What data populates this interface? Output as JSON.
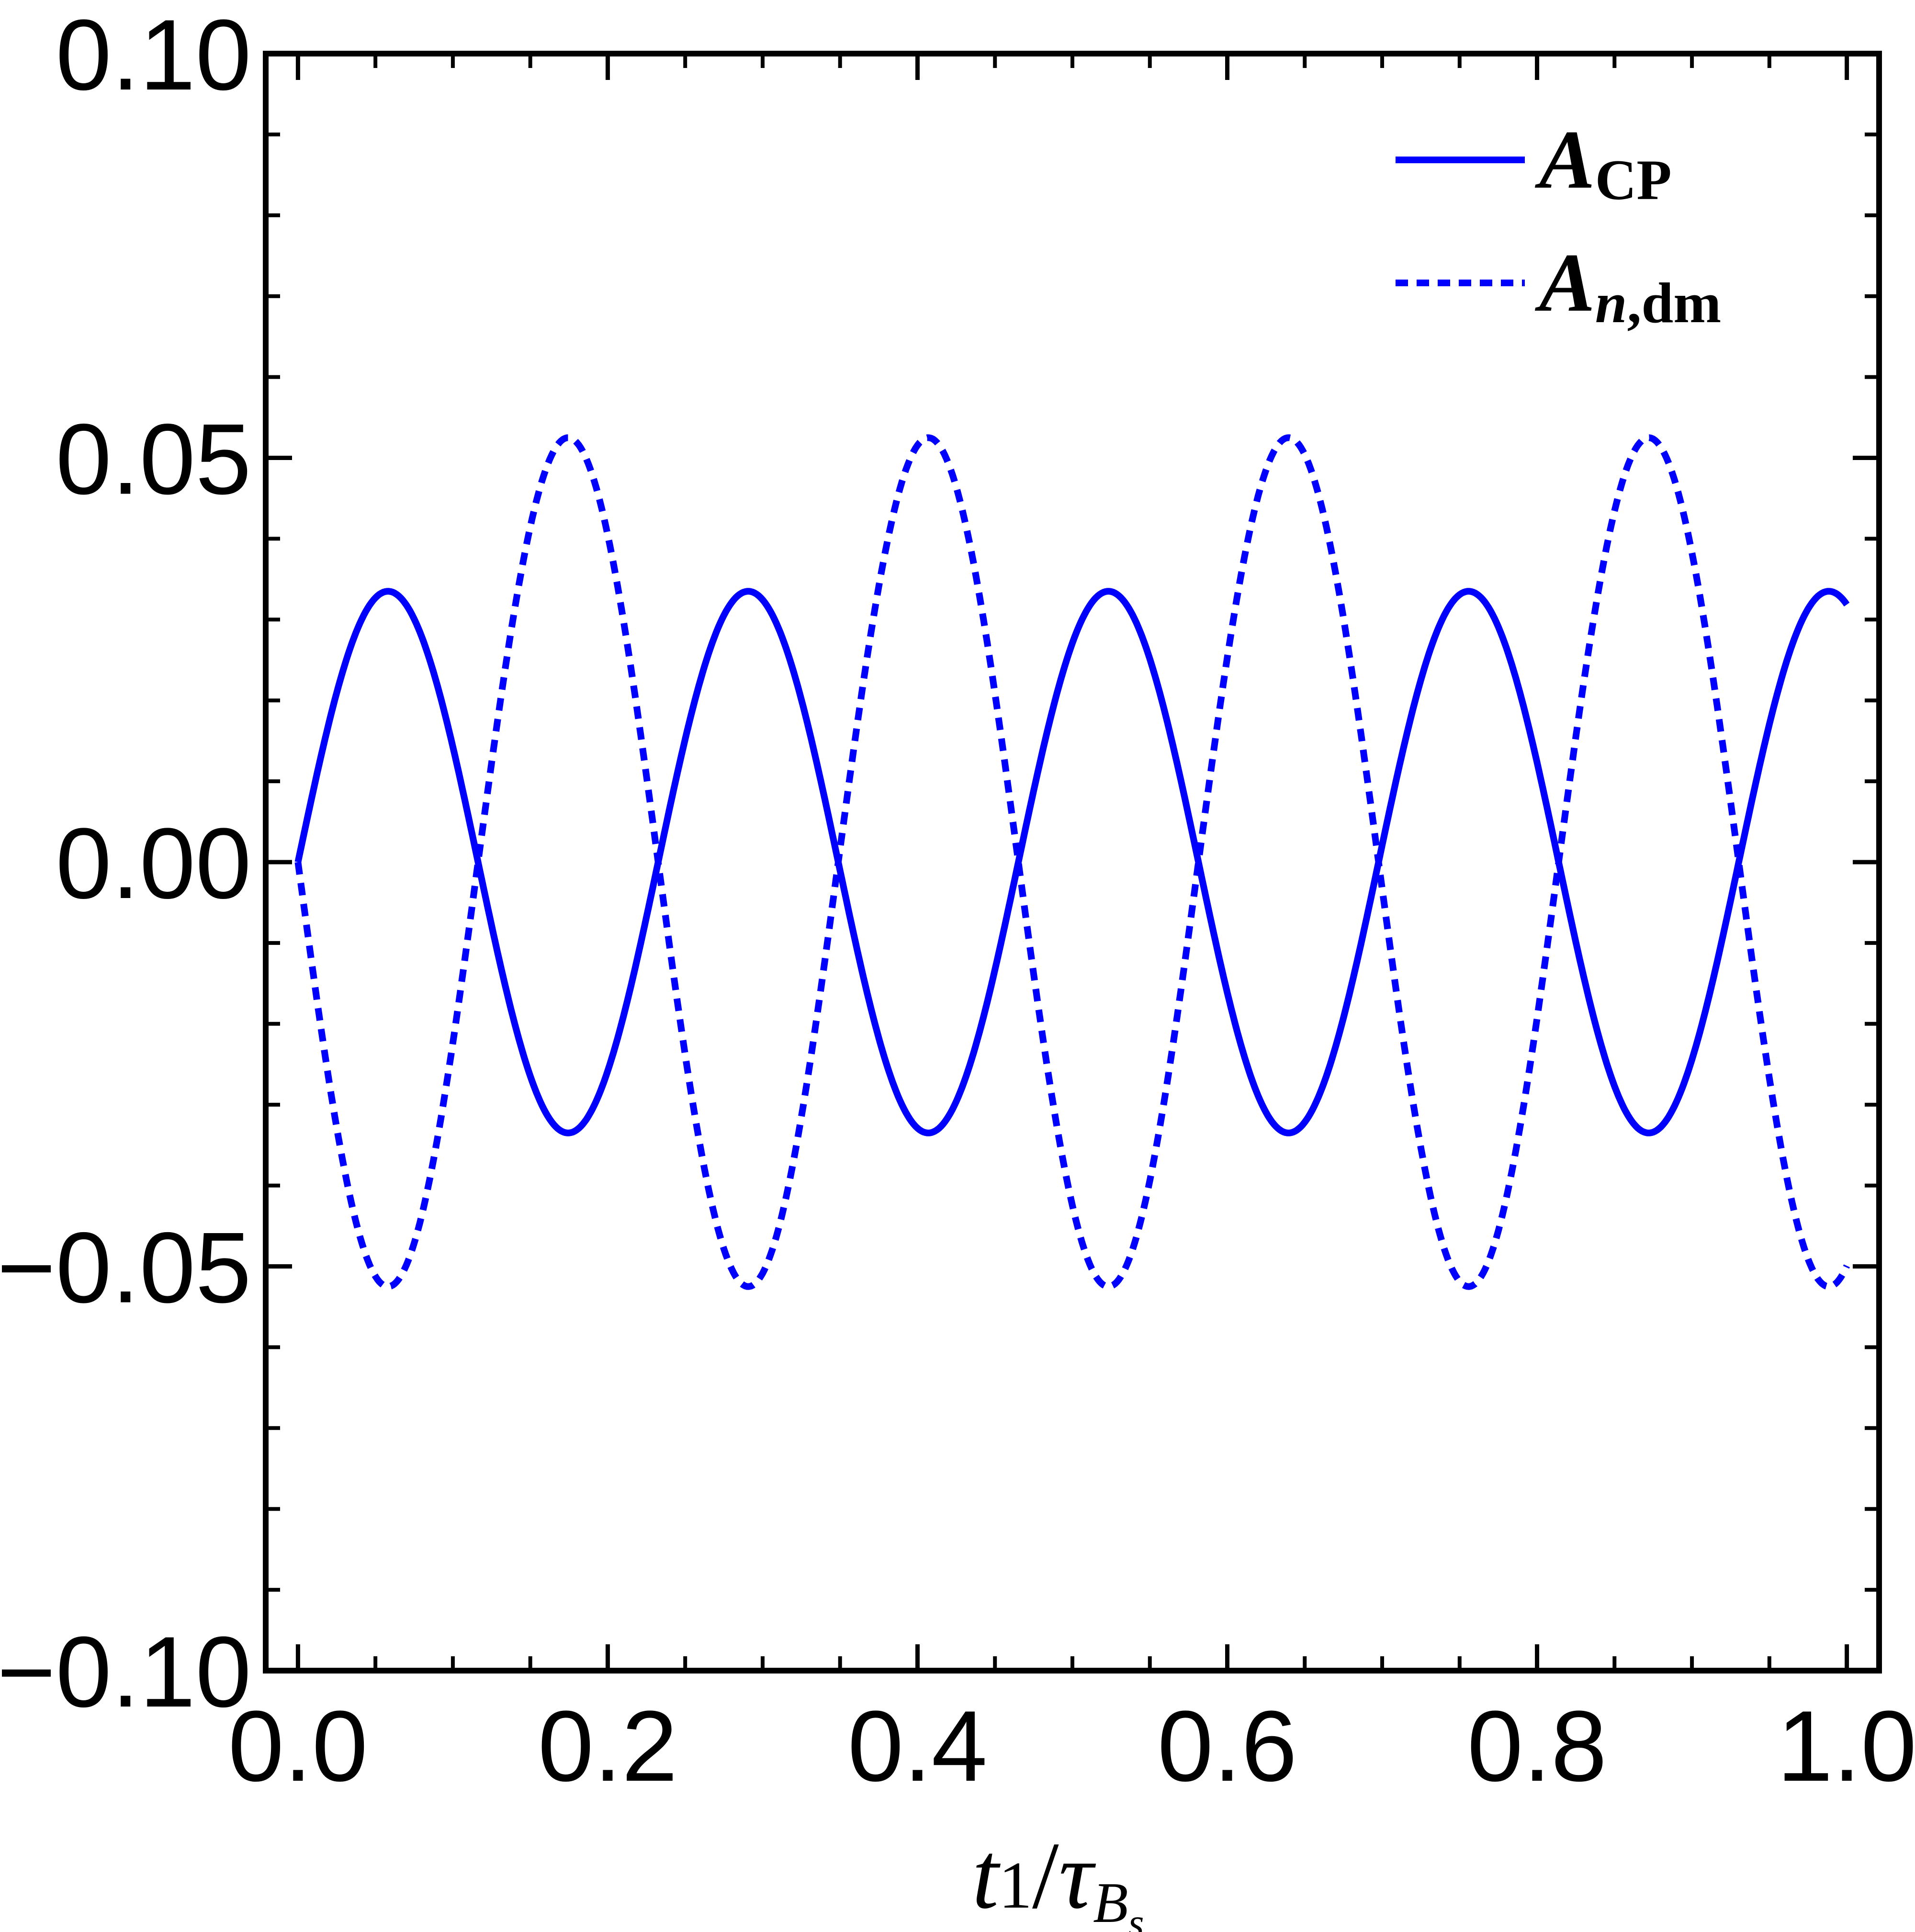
{
  "chart_data": {
    "type": "line",
    "xlabel": {
      "main": "t",
      "main_sub": "1",
      "slash": "/",
      "tau": "τ",
      "tau_sub": "B",
      "tau_subsub": "s"
    },
    "xlim": [
      0,
      1
    ],
    "ylim": [
      -0.1,
      0.1
    ],
    "x_ticks": [
      0.0,
      0.2,
      0.4,
      0.6,
      0.8,
      1.0
    ],
    "x_tick_labels": [
      "0.0",
      "0.2",
      "0.4",
      "0.6",
      "0.8",
      "1.0"
    ],
    "y_ticks": [
      -0.1,
      -0.05,
      0.0,
      0.05,
      0.1
    ],
    "y_tick_labels": [
      "−0.10",
      "−0.05",
      "0.00",
      "0.05",
      "0.10"
    ],
    "x_minor_step": 0.05,
    "y_minor_step": 0.01,
    "grid": false,
    "legend_position": "top-right",
    "series": [
      {
        "key": "acp",
        "legend": {
          "main": "A",
          "sub": "CP",
          "sub_italic": ""
        },
        "style": "solid",
        "color": "#0000ff",
        "function": "amplitude*sin(2*pi*frequency*x)",
        "amplitude": 0.0335,
        "frequency": 4.3,
        "x_range": [
          0,
          1
        ]
      },
      {
        "key": "andm",
        "legend": {
          "main": "A",
          "sub": ",dm",
          "sub_italic": "n"
        },
        "style": "dashed",
        "color": "#0000ff",
        "function": "-amplitude*sin(2*pi*frequency*x)",
        "amplitude": 0.0525,
        "frequency": 4.3,
        "x_range": [
          0,
          1
        ]
      }
    ]
  }
}
